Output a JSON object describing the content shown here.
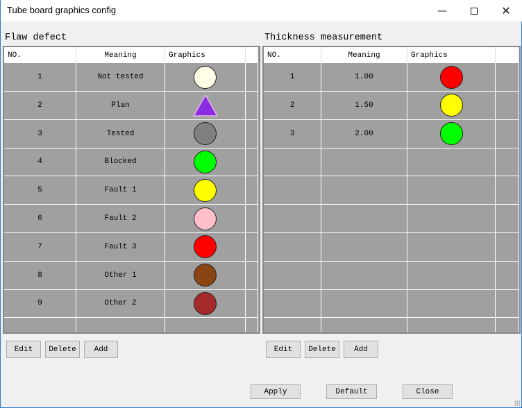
{
  "window": {
    "title": "Tube board graphics config",
    "minimize_icon": "minimize-icon",
    "maximize_icon": "maximize-icon",
    "close_icon": "close-icon"
  },
  "flaw": {
    "label": "Flaw defect",
    "columns": [
      "NO.",
      "Meaning",
      "Graphics"
    ],
    "rows": [
      {
        "no": "1",
        "meaning": "Not tested",
        "shape": "circle",
        "color": "#fffde6"
      },
      {
        "no": "2",
        "meaning": "Plan",
        "shape": "triangle",
        "color": "#8a2be2"
      },
      {
        "no": "3",
        "meaning": "Tested",
        "shape": "circle",
        "color": "#808080"
      },
      {
        "no": "4",
        "meaning": "Blocked",
        "shape": "circle",
        "color": "#00ff00"
      },
      {
        "no": "5",
        "meaning": "Fault 1",
        "shape": "circle",
        "color": "#ffff00"
      },
      {
        "no": "6",
        "meaning": "Fault 2",
        "shape": "circle",
        "color": "#ffc0cb"
      },
      {
        "no": "7",
        "meaning": "Fault 3",
        "shape": "circle",
        "color": "#ff0000"
      },
      {
        "no": "8",
        "meaning": "Other 1",
        "shape": "circle",
        "color": "#8b4513"
      },
      {
        "no": "9",
        "meaning": "Other 2",
        "shape": "circle",
        "color": "#a52a2a"
      }
    ],
    "buttons": {
      "edit": "Edit",
      "delete": "Delete",
      "add": "Add"
    }
  },
  "thickness": {
    "label": "Thickness measurement",
    "columns": [
      "NO.",
      "Meaning",
      "Graphics"
    ],
    "rows": [
      {
        "no": "1",
        "meaning": "1.00",
        "shape": "circle",
        "color": "#ff0000"
      },
      {
        "no": "2",
        "meaning": "1.50",
        "shape": "circle",
        "color": "#ffff00"
      },
      {
        "no": "3",
        "meaning": "2.00",
        "shape": "circle",
        "color": "#00ff00"
      }
    ],
    "buttons": {
      "edit": "Edit",
      "delete": "Delete",
      "add": "Add"
    }
  },
  "footer": {
    "apply": "Apply",
    "default": "Default",
    "close": "Close"
  }
}
